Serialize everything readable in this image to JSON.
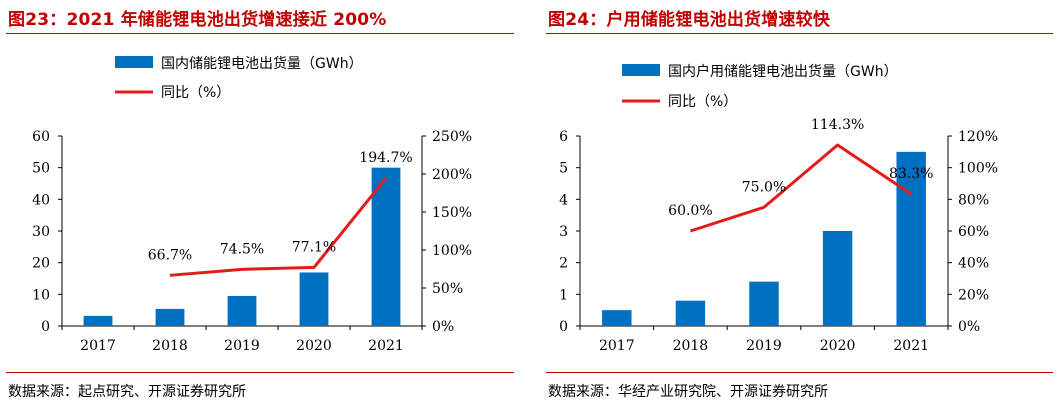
{
  "figures": [
    {
      "title": "图23：2021 年储能锂电池出货增速接近 200%",
      "source": "数据来源：起点研究、开源证券研究所"
    },
    {
      "title": "图24：户用储能锂电池出货增速较快",
      "source": "数据来源：华经产业研究院、开源证券研究所"
    }
  ],
  "chart_data": [
    {
      "type": "bar",
      "categories": [
        "2017",
        "2018",
        "2019",
        "2020",
        "2021"
      ],
      "series": [
        {
          "name": "国内储能锂电池出货量（GWh）",
          "type": "bar",
          "axis": "left",
          "color": "#0070c0",
          "values": [
            3.2,
            5.4,
            9.5,
            16.9,
            50.0
          ]
        },
        {
          "name": "同比（%）",
          "type": "line",
          "axis": "right",
          "color": "#e31b1b",
          "values": [
            null,
            66.7,
            74.5,
            77.1,
            194.7
          ],
          "labels": [
            "",
            "66.7%",
            "74.5%",
            "77.1%",
            "194.7%"
          ]
        }
      ],
      "ylim_left": [
        0,
        60
      ],
      "yticks_left": [
        "0",
        "10",
        "20",
        "30",
        "40",
        "50",
        "60"
      ],
      "ylim_right": [
        0,
        250
      ],
      "yticks_right": [
        "0%",
        "50%",
        "100%",
        "150%",
        "200%",
        "250%"
      ],
      "grid": false,
      "legend": "top"
    },
    {
      "type": "bar",
      "categories": [
        "2017",
        "2018",
        "2019",
        "2020",
        "2021"
      ],
      "series": [
        {
          "name": "国内户用储能锂电池出货量（GWh）",
          "type": "bar",
          "axis": "left",
          "color": "#0070c0",
          "values": [
            0.5,
            0.8,
            1.4,
            3.0,
            5.5
          ]
        },
        {
          "name": "同比（%）",
          "type": "line",
          "axis": "right",
          "color": "#e31b1b",
          "values": [
            null,
            60.0,
            75.0,
            114.3,
            83.3
          ],
          "labels": [
            "",
            "60.0%",
            "75.0%",
            "114.3%",
            "83.3%"
          ]
        }
      ],
      "ylim_left": [
        0,
        6
      ],
      "yticks_left": [
        "0",
        "1",
        "2",
        "3",
        "4",
        "5",
        "6"
      ],
      "ylim_right": [
        0,
        120
      ],
      "yticks_right": [
        "0%",
        "20%",
        "40%",
        "60%",
        "80%",
        "100%",
        "120%"
      ],
      "grid": false,
      "legend": "top"
    }
  ]
}
